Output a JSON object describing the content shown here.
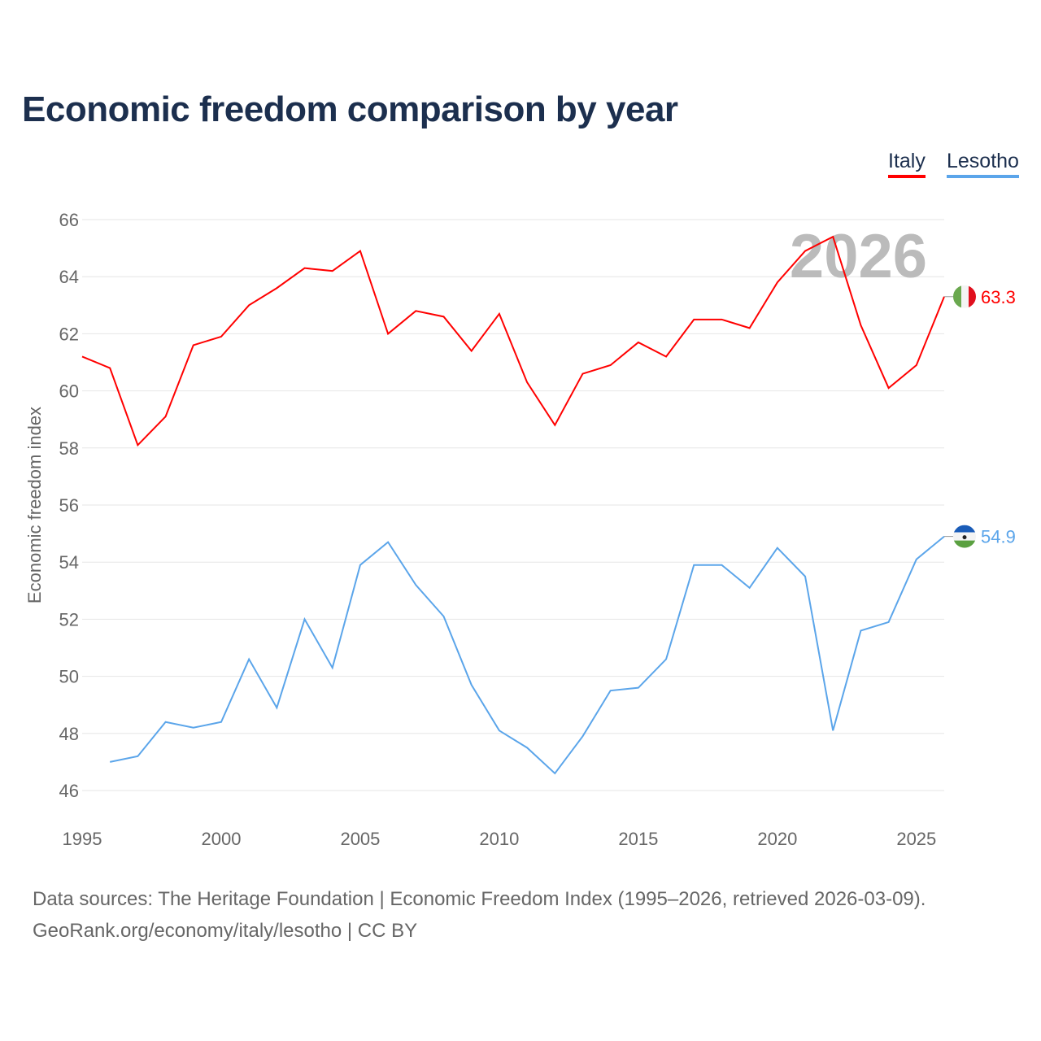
{
  "title": "Economic freedom comparison by year",
  "legend": [
    {
      "label": "Italy",
      "color": "#ff0000"
    },
    {
      "label": "Lesotho",
      "color": "#5ba5ea"
    }
  ],
  "footer": {
    "line1": "Data sources: The Heritage Foundation | Economic Freedom Index (1995–2026, retrieved 2026-03-09).",
    "line2": "GeoRank.org/economy/italy/lesotho | CC BY"
  },
  "chart_data": {
    "type": "line",
    "title": "Economic freedom comparison by year",
    "xlabel": "",
    "ylabel": "Economic freedom index",
    "xlim": [
      1995,
      2026
    ],
    "ylim": [
      46,
      66
    ],
    "xticks": [
      1995,
      2000,
      2005,
      2010,
      2015,
      2020,
      2025
    ],
    "yticks": [
      46,
      48,
      50,
      52,
      54,
      56,
      58,
      60,
      62,
      64,
      66
    ],
    "watermark_year": "2026",
    "series": [
      {
        "name": "Italy",
        "color": "#ff0000",
        "end_label": "63.3",
        "x": [
          1995,
          1996,
          1997,
          1998,
          1999,
          2000,
          2001,
          2002,
          2003,
          2004,
          2005,
          2006,
          2007,
          2008,
          2009,
          2010,
          2011,
          2012,
          2013,
          2014,
          2015,
          2016,
          2017,
          2018,
          2019,
          2020,
          2021,
          2022,
          2023,
          2024,
          2025,
          2026
        ],
        "values": [
          61.2,
          60.8,
          58.1,
          59.1,
          61.6,
          61.9,
          63.0,
          63.6,
          64.3,
          64.2,
          64.9,
          62.0,
          62.8,
          62.6,
          61.4,
          62.7,
          60.3,
          58.8,
          60.6,
          60.9,
          61.7,
          61.2,
          62.5,
          62.5,
          62.2,
          63.8,
          64.9,
          65.4,
          62.3,
          60.1,
          60.9,
          63.3
        ]
      },
      {
        "name": "Lesotho",
        "color": "#5ba5ea",
        "end_label": "54.9",
        "x": [
          1996,
          1997,
          1998,
          1999,
          2000,
          2001,
          2002,
          2003,
          2004,
          2005,
          2006,
          2007,
          2008,
          2009,
          2010,
          2011,
          2012,
          2013,
          2014,
          2015,
          2016,
          2017,
          2018,
          2019,
          2020,
          2021,
          2022,
          2023,
          2024,
          2025,
          2026
        ],
        "values": [
          47.0,
          47.2,
          48.4,
          48.2,
          48.4,
          50.6,
          48.9,
          52.0,
          50.3,
          53.9,
          54.7,
          53.2,
          52.1,
          49.7,
          48.1,
          47.5,
          46.6,
          47.9,
          49.5,
          49.6,
          50.6,
          53.9,
          53.9,
          53.1,
          54.5,
          53.5,
          48.1,
          51.6,
          51.9,
          54.1,
          54.9
        ]
      }
    ]
  }
}
